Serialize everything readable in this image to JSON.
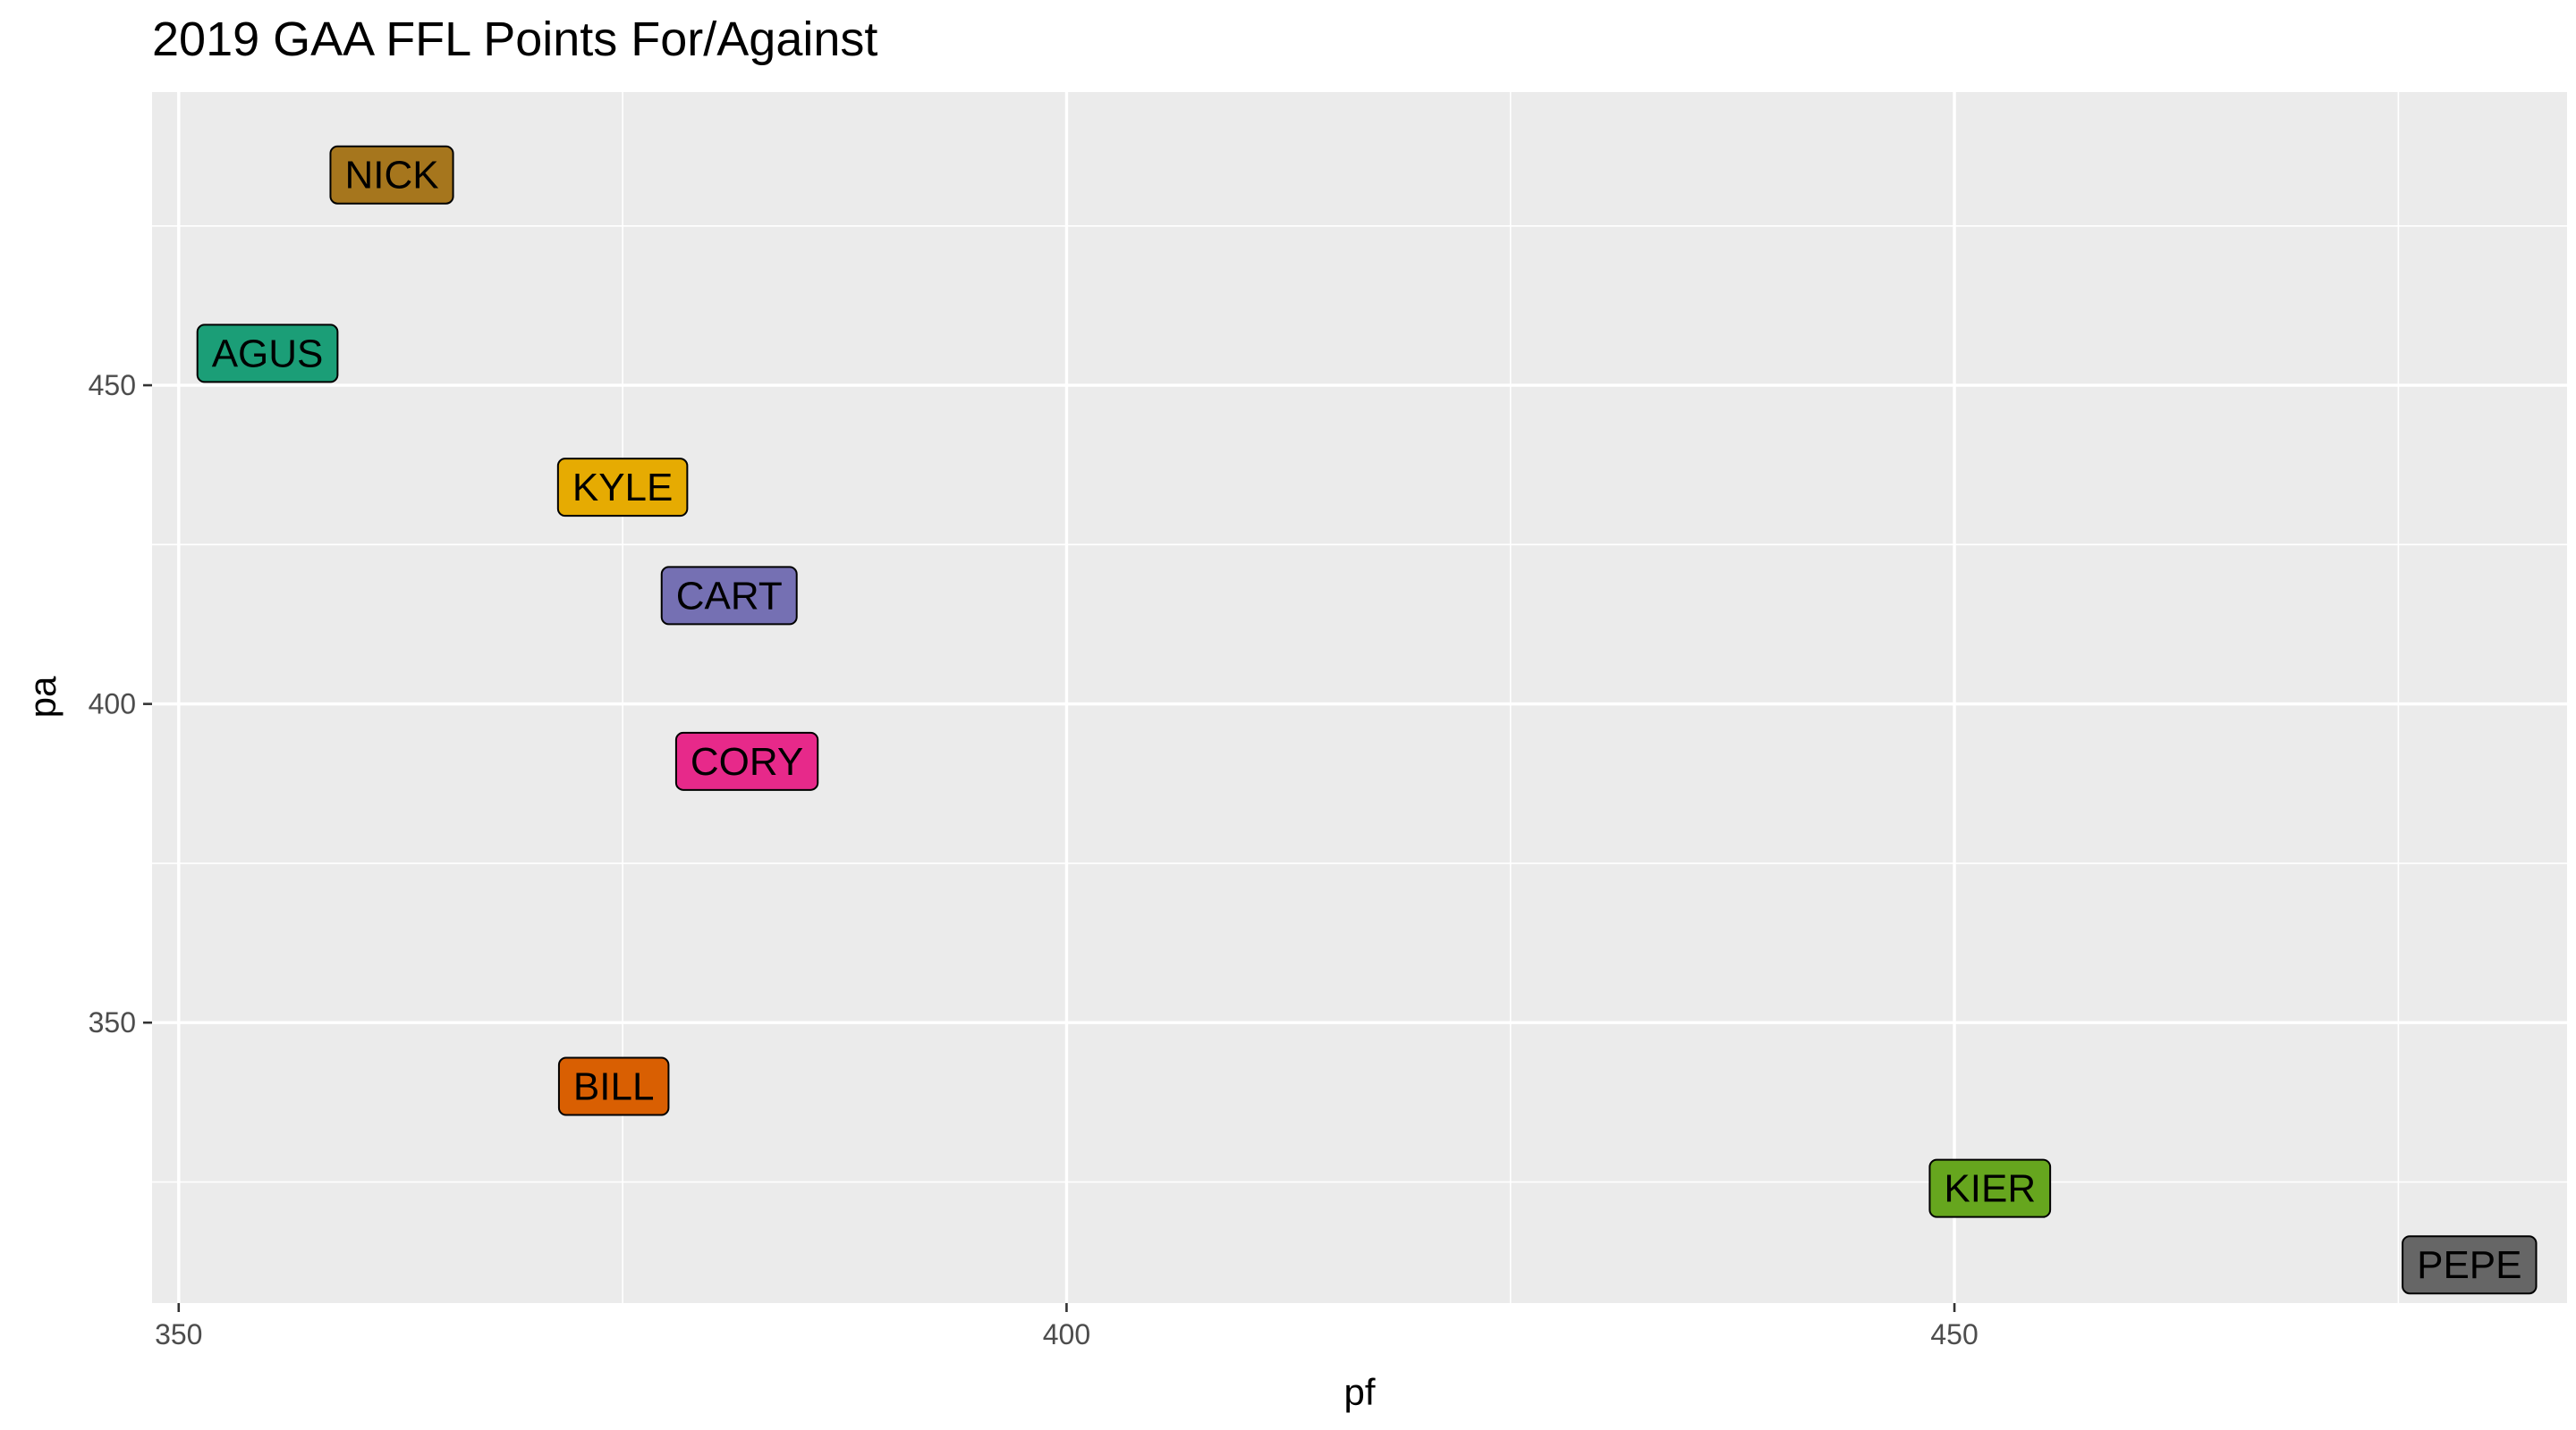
{
  "chart_data": {
    "type": "scatter",
    "title": "2019 GAA FFL Points For/Against",
    "xlabel": "pf",
    "ylabel": "pa",
    "xlim": [
      348.5,
      484.5
    ],
    "ylim": [
      306,
      496
    ],
    "x_ticks": [
      350,
      400,
      450
    ],
    "y_ticks": [
      350,
      400,
      450
    ],
    "grid": true,
    "panel_background": "#ebebeb",
    "points": [
      {
        "label": "NICK",
        "x": 362,
        "y": 483,
        "color": "#a6761d"
      },
      {
        "label": "AGUS",
        "x": 355,
        "y": 455,
        "color": "#1b9e77"
      },
      {
        "label": "KYLE",
        "x": 375,
        "y": 434,
        "color": "#e6ab02"
      },
      {
        "label": "CART",
        "x": 381,
        "y": 417,
        "color": "#7570b3"
      },
      {
        "label": "CORY",
        "x": 382,
        "y": 391,
        "color": "#e7298a"
      },
      {
        "label": "BILL",
        "x": 374.5,
        "y": 340,
        "color": "#d95f02"
      },
      {
        "label": "KIER",
        "x": 452,
        "y": 324,
        "color": "#66a61e"
      },
      {
        "label": "PEPE",
        "x": 479,
        "y": 312,
        "color": "#666666"
      }
    ]
  }
}
